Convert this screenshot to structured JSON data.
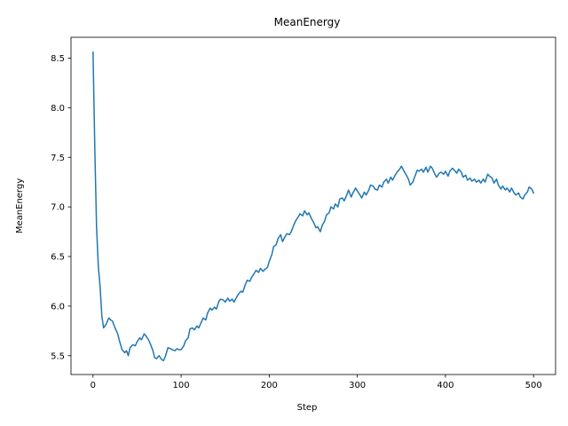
{
  "chart_data": {
    "type": "line",
    "title": "MeanEnergy",
    "xlabel": "Step",
    "ylabel": "MeanEnergy",
    "xlim": [
      -25,
      525
    ],
    "ylim": [
      5.31,
      8.71
    ],
    "xticks": [
      0,
      100,
      200,
      300,
      400,
      500
    ],
    "xtick_labels": [
      "0",
      "100",
      "200",
      "300",
      "400",
      "500"
    ],
    "yticks": [
      5.5,
      6.0,
      6.5,
      7.0,
      7.5,
      8.0,
      8.5
    ],
    "ytick_labels": [
      "5.5",
      "6.0",
      "6.5",
      "7.0",
      "7.5",
      "8.0",
      "8.5"
    ],
    "grid": false,
    "series": [
      {
        "color": "#1f77b4",
        "x": [
          0,
          2,
          4,
          6,
          8,
          10,
          12,
          15,
          18,
          20,
          22,
          25,
          28,
          30,
          33,
          36,
          38,
          40,
          42,
          45,
          48,
          50,
          53,
          55,
          58,
          60,
          63,
          65,
          68,
          70,
          72,
          75,
          78,
          80,
          82,
          85,
          88,
          90,
          93,
          95,
          98,
          100,
          103,
          105,
          108,
          110,
          113,
          115,
          118,
          120,
          123,
          125,
          128,
          130,
          133,
          135,
          138,
          140,
          143,
          145,
          148,
          150,
          153,
          155,
          158,
          160,
          163,
          165,
          168,
          170,
          173,
          175,
          178,
          180,
          183,
          185,
          188,
          190,
          193,
          195,
          198,
          200,
          203,
          205,
          208,
          210,
          213,
          215,
          218,
          220,
          223,
          225,
          228,
          230,
          233,
          235,
          238,
          240,
          243,
          245,
          248,
          250,
          253,
          255,
          258,
          260,
          263,
          265,
          268,
          270,
          273,
          275,
          278,
          280,
          283,
          285,
          288,
          290,
          293,
          295,
          298,
          300,
          303,
          305,
          308,
          310,
          313,
          315,
          318,
          320,
          323,
          325,
          328,
          330,
          333,
          335,
          338,
          340,
          343,
          345,
          348,
          350,
          353,
          355,
          358,
          360,
          363,
          365,
          368,
          370,
          373,
          375,
          378,
          380,
          383,
          385,
          388,
          390,
          393,
          395,
          398,
          400,
          403,
          405,
          408,
          410,
          413,
          415,
          418,
          420,
          423,
          425,
          428,
          430,
          433,
          435,
          438,
          440,
          443,
          445,
          448,
          450,
          453,
          455,
          458,
          460,
          463,
          465,
          468,
          470,
          473,
          475,
          478,
          480,
          483,
          485,
          488,
          490,
          493,
          495,
          498,
          500
        ],
        "y": [
          8.56,
          7.6,
          6.8,
          6.4,
          6.2,
          5.9,
          5.78,
          5.82,
          5.88,
          5.86,
          5.85,
          5.78,
          5.72,
          5.65,
          5.56,
          5.53,
          5.55,
          5.5,
          5.58,
          5.61,
          5.6,
          5.64,
          5.68,
          5.66,
          5.72,
          5.7,
          5.66,
          5.62,
          5.55,
          5.48,
          5.47,
          5.5,
          5.46,
          5.45,
          5.49,
          5.58,
          5.57,
          5.56,
          5.55,
          5.57,
          5.56,
          5.56,
          5.6,
          5.65,
          5.68,
          5.77,
          5.78,
          5.76,
          5.8,
          5.78,
          5.84,
          5.88,
          5.86,
          5.93,
          5.98,
          5.96,
          5.99,
          5.97,
          6.05,
          6.07,
          6.06,
          6.04,
          6.08,
          6.05,
          6.07,
          6.04,
          6.09,
          6.12,
          6.15,
          6.14,
          6.22,
          6.26,
          6.25,
          6.29,
          6.33,
          6.36,
          6.34,
          6.38,
          6.35,
          6.37,
          6.39,
          6.45,
          6.52,
          6.6,
          6.62,
          6.68,
          6.72,
          6.65,
          6.7,
          6.73,
          6.72,
          6.75,
          6.82,
          6.86,
          6.9,
          6.93,
          6.91,
          6.96,
          6.92,
          6.94,
          6.88,
          6.85,
          6.79,
          6.8,
          6.75,
          6.81,
          6.86,
          6.92,
          6.94,
          7.0,
          6.98,
          7.03,
          7.0,
          7.08,
          7.09,
          7.06,
          7.12,
          7.17,
          7.1,
          7.14,
          7.19,
          7.16,
          7.12,
          7.09,
          7.15,
          7.12,
          7.17,
          7.22,
          7.21,
          7.18,
          7.17,
          7.22,
          7.2,
          7.25,
          7.28,
          7.24,
          7.3,
          7.27,
          7.32,
          7.35,
          7.38,
          7.41,
          7.36,
          7.33,
          7.28,
          7.22,
          7.25,
          7.3,
          7.37,
          7.36,
          7.38,
          7.35,
          7.4,
          7.35,
          7.41,
          7.39,
          7.33,
          7.3,
          7.34,
          7.35,
          7.33,
          7.36,
          7.31,
          7.36,
          7.39,
          7.37,
          7.34,
          7.38,
          7.35,
          7.3,
          7.32,
          7.27,
          7.29,
          7.26,
          7.28,
          7.25,
          7.27,
          7.24,
          7.28,
          7.25,
          7.33,
          7.31,
          7.29,
          7.24,
          7.28,
          7.22,
          7.18,
          7.21,
          7.17,
          7.19,
          7.15,
          7.19,
          7.14,
          7.12,
          7.14,
          7.1,
          7.08,
          7.12,
          7.15,
          7.2,
          7.18,
          7.14
        ]
      }
    ]
  }
}
